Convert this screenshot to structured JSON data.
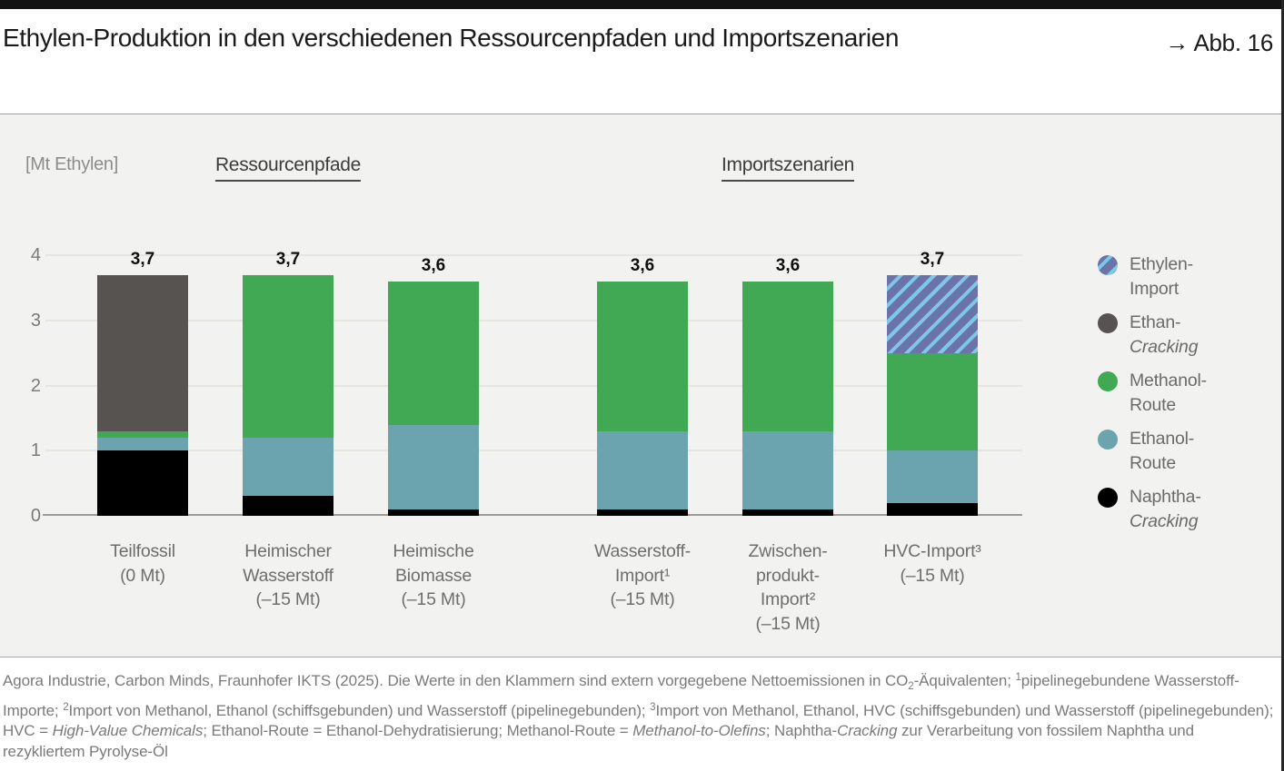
{
  "header": {
    "title": "Ethylen-Produktion in den verschiedenen Ressourcenpfaden und Importszenarien",
    "figure_ref": "→ Abb. 16"
  },
  "chart": {
    "unit_label": "[Mt Ethylen]",
    "group_headers": [
      {
        "label": "Ressourcenpfade"
      },
      {
        "label": "Importszenarien"
      }
    ]
  },
  "chart_data": {
    "type": "bar",
    "stacked": true,
    "title": "Ethylen-Produktion in den verschiedenen Ressourcenpfaden und Importszenarien",
    "ylabel": "[Mt Ethylen]",
    "ylim": [
      0,
      4
    ],
    "yticks": [
      0,
      1,
      2,
      3,
      4
    ],
    "grid": true,
    "legend_position": "right",
    "groups": [
      "Ressourcenpfade",
      "Importszenarien"
    ],
    "categories": [
      {
        "group": "Ressourcenpfade",
        "lines": [
          "Teilfossil",
          "(0 Mt)"
        ]
      },
      {
        "group": "Ressourcenpfade",
        "lines": [
          "Heimischer",
          "Wasserstoff",
          "(–15 Mt)"
        ]
      },
      {
        "group": "Ressourcenpfade",
        "lines": [
          "Heimische",
          "Biomasse",
          "(–15 Mt)"
        ]
      },
      {
        "group": "Importszenarien",
        "lines": [
          "Wasserstoff-",
          "Import¹",
          "(–15 Mt)"
        ]
      },
      {
        "group": "Importszenarien",
        "lines": [
          "Zwischen-",
          "produkt-",
          "Import²",
          "(–15 Mt)"
        ]
      },
      {
        "group": "Importszenarien",
        "lines": [
          "HVC-Import³",
          "(–15 Mt)"
        ]
      }
    ],
    "series": [
      {
        "name": "Naphtha-Cracking",
        "color": "#000000",
        "values": [
          1.0,
          0.3,
          0.1,
          0.1,
          0.1,
          0.2
        ]
      },
      {
        "name": "Ethanol-Route",
        "color": "#6ba3ae",
        "values": [
          0.2,
          0.9,
          1.3,
          1.2,
          1.2,
          0.8
        ]
      },
      {
        "name": "Methanol-Route",
        "color": "#41a854",
        "values": [
          0.1,
          2.5,
          2.2,
          2.3,
          2.3,
          1.5
        ]
      },
      {
        "name": "Ethan-Cracking",
        "color": "#575350",
        "values": [
          2.4,
          0,
          0,
          0,
          0,
          0
        ]
      },
      {
        "name": "Ethylen-Import",
        "color": "#6b74a9",
        "hatch": true,
        "hatch_color": "#7fc6e8",
        "values": [
          0,
          0,
          0,
          0,
          0,
          1.2
        ]
      }
    ],
    "totals": [
      "3,7",
      "3,7",
      "3,6",
      "3,6",
      "3,6",
      "3,7"
    ],
    "legend": [
      {
        "swatch": "hatch",
        "lines": [
          {
            "text": "Ethylen-"
          },
          {
            "text": "Import"
          }
        ]
      },
      {
        "swatch": "#575350",
        "lines": [
          {
            "text": "Ethan-"
          },
          {
            "text": "Cracking",
            "italic": true
          }
        ]
      },
      {
        "swatch": "#41a854",
        "lines": [
          {
            "text": "Methanol-"
          },
          {
            "text": "Route"
          }
        ]
      },
      {
        "swatch": "#6ba3ae",
        "lines": [
          {
            "text": "Ethanol-"
          },
          {
            "text": "Route"
          }
        ]
      },
      {
        "swatch": "#000000",
        "lines": [
          {
            "text": "Naphtha-"
          },
          {
            "text": "Cracking",
            "italic": true
          }
        ]
      }
    ]
  },
  "footer": {
    "segments": [
      {
        "text": "Agora Industrie, Carbon Minds, Fraunhofer IKTS (2025). Die Werte in den Klammern sind extern vorgegebene Nettoemissionen in CO"
      },
      {
        "text": "2",
        "style": "sub"
      },
      {
        "text": "-Äquivalenten; "
      },
      {
        "text": "1",
        "style": "sup"
      },
      {
        "text": "pipelinegebundene Wasserstoff-Importe; "
      },
      {
        "text": "2",
        "style": "sup"
      },
      {
        "text": "Import von Methanol, Ethanol (schiffsgebunden) und Wasserstoff (pipelinegebunden); "
      },
      {
        "text": "3",
        "style": "sup"
      },
      {
        "text": "Import von Methanol, Ethanol, HVC (schiffsgebunden) und Wasserstoff (pipelinegebunden); HVC = "
      },
      {
        "text": "High-Value Chemicals",
        "style": "italic"
      },
      {
        "text": "; Ethanol-Route = Ethanol-Dehydratisierung; Methanol-Route = "
      },
      {
        "text": "Methanol-to-Olefins",
        "style": "italic"
      },
      {
        "text": "; Naphtha-"
      },
      {
        "text": "Cracking",
        "style": "italic"
      },
      {
        "text": " zur Verarbeitung von fossilem Naphtha und rezykliertem Pyrolyse-Öl"
      }
    ]
  },
  "colors": {
    "page_background": "#ffffff",
    "chart_background": "#f2f2f0",
    "top_bar": "#121212",
    "grid_line": "#e6e6df",
    "axis_line": "#9a9a96",
    "label_gray": "#6e6e6e"
  }
}
